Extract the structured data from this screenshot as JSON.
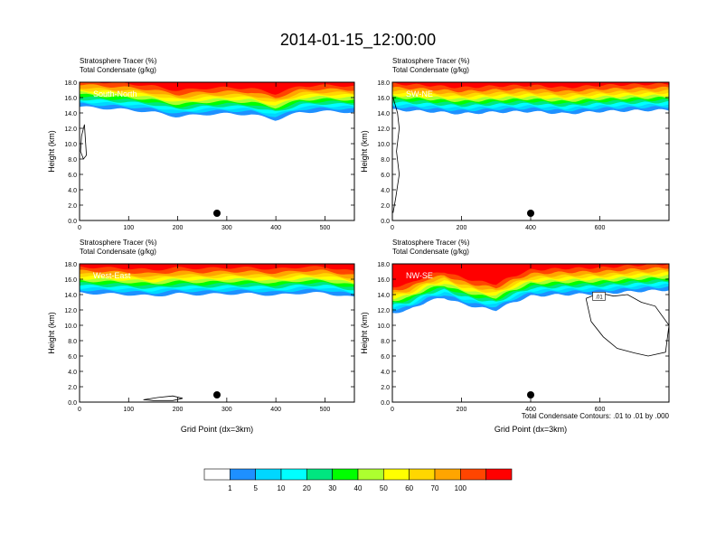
{
  "figure": {
    "title": "2014-01-15_12:00:00",
    "footnote": "Total Condensate Contours: .01 to .01 by .000"
  },
  "chart_data": [
    {
      "type": "heatmap",
      "panel_label": "South-North",
      "subtitle1": "Stratosphere Tracer   (%)",
      "subtitle2": "Total Condensate   (g/kg)",
      "ylabel": "Height (km)",
      "xlabel": "",
      "xlim": [
        0,
        560
      ],
      "ylim": [
        0,
        18
      ],
      "xticks": [
        "0",
        "100",
        "200",
        "300",
        "400",
        "500"
      ],
      "yticks": [
        "0.0",
        "2.0",
        "4.0",
        "6.0",
        "8.0",
        "10.0",
        "12.0",
        "14.0",
        "16.0",
        "18.0"
      ],
      "marker_x": 280,
      "tracer_base_km": [
        [
          0,
          15.0
        ],
        [
          50,
          14.8
        ],
        [
          100,
          14.6
        ],
        [
          150,
          14.3
        ],
        [
          200,
          13.7
        ],
        [
          250,
          14.0
        ],
        [
          300,
          14.1
        ],
        [
          350,
          14.0
        ],
        [
          400,
          13.3
        ],
        [
          450,
          14.3
        ],
        [
          500,
          14.4
        ],
        [
          560,
          14.3
        ]
      ],
      "condensate_contour": [
        [
          10,
          12.5
        ],
        [
          4,
          11
        ],
        [
          2,
          9
        ],
        [
          8,
          8
        ],
        [
          14,
          8.5
        ],
        [
          12,
          10.5
        ],
        [
          10,
          12.5
        ]
      ]
    },
    {
      "type": "heatmap",
      "panel_label": "SW-NE",
      "subtitle1": "Stratosphere Tracer   (%)",
      "subtitle2": "Total Condensate   (g/kg)",
      "ylabel": "Height (km)",
      "xlabel": "",
      "xlim": [
        0,
        800
      ],
      "ylim": [
        0,
        18
      ],
      "xticks": [
        "0",
        "200",
        "400",
        "600"
      ],
      "yticks": [
        "0.0",
        "2.0",
        "4.0",
        "6.0",
        "8.0",
        "10.0",
        "12.0",
        "14.0",
        "16.0",
        "18.0"
      ],
      "marker_x": 400,
      "tracer_base_km": [
        [
          0,
          14.6
        ],
        [
          100,
          14.4
        ],
        [
          200,
          14.1
        ],
        [
          300,
          14.3
        ],
        [
          400,
          14.4
        ],
        [
          500,
          14.1
        ],
        [
          600,
          14.4
        ],
        [
          700,
          14.5
        ],
        [
          800,
          14.6
        ]
      ],
      "condensate_contour": [
        [
          2,
          16
        ],
        [
          15,
          14
        ],
        [
          20,
          12
        ],
        [
          12,
          9
        ],
        [
          20,
          6
        ],
        [
          10,
          3
        ],
        [
          2,
          1
        ]
      ]
    },
    {
      "type": "heatmap",
      "panel_label": "West-East",
      "subtitle1": "Stratosphere Tracer   (%)",
      "subtitle2": "Total Condensate   (g/kg)",
      "ylabel": "Height (km)",
      "xlabel": "Grid Point (dx=3km)",
      "xlim": [
        0,
        560
      ],
      "ylim": [
        0,
        18
      ],
      "xticks": [
        "0",
        "100",
        "200",
        "300",
        "400",
        "500"
      ],
      "yticks": [
        "0.0",
        "2.0",
        "4.0",
        "6.0",
        "8.0",
        "10.0",
        "12.0",
        "14.0",
        "16.0",
        "18.0"
      ],
      "marker_x": 280,
      "tracer_base_km": [
        [
          0,
          14.4
        ],
        [
          50,
          14.3
        ],
        [
          100,
          14.2
        ],
        [
          150,
          14.0
        ],
        [
          200,
          14.3
        ],
        [
          250,
          14.2
        ],
        [
          300,
          14.3
        ],
        [
          350,
          14.3
        ],
        [
          400,
          14.1
        ],
        [
          450,
          14.4
        ],
        [
          500,
          14.4
        ],
        [
          560,
          13.8
        ]
      ],
      "condensate_contour": [
        [
          130,
          0.3
        ],
        [
          160,
          0.6
        ],
        [
          190,
          0.8
        ],
        [
          210,
          0.5
        ],
        [
          190,
          0.2
        ],
        [
          150,
          0.2
        ],
        [
          130,
          0.3
        ]
      ]
    },
    {
      "type": "heatmap",
      "panel_label": "NW-SE",
      "subtitle1": "Stratosphere Tracer   (%)",
      "subtitle2": "Total Condensate   (g/kg)",
      "ylabel": "Height (km)",
      "xlabel": "Grid Point (dx=3km)",
      "xlim": [
        0,
        800
      ],
      "ylim": [
        0,
        18
      ],
      "xticks": [
        "0",
        "200",
        "400",
        "600"
      ],
      "yticks": [
        "0.0",
        "2.0",
        "4.0",
        "6.0",
        "8.0",
        "10.0",
        "12.0",
        "14.0",
        "16.0",
        "18.0"
      ],
      "marker_x": 400,
      "contour_label": ".01",
      "tracer_base_km": [
        [
          0,
          11.8
        ],
        [
          50,
          12.2
        ],
        [
          100,
          13.3
        ],
        [
          150,
          13.8
        ],
        [
          200,
          13.0
        ],
        [
          250,
          12.5
        ],
        [
          300,
          12.2
        ],
        [
          350,
          13.2
        ],
        [
          400,
          14.0
        ],
        [
          450,
          14.1
        ],
        [
          500,
          14.2
        ],
        [
          600,
          14.3
        ],
        [
          700,
          14.6
        ],
        [
          800,
          14.8
        ]
      ],
      "condensate_contour": [
        [
          560,
          13.5
        ],
        [
          600,
          14.2
        ],
        [
          640,
          13.8
        ],
        [
          680,
          14.0
        ],
        [
          720,
          13.0
        ],
        [
          760,
          12.5
        ],
        [
          800,
          10.0
        ],
        [
          790,
          6.5
        ],
        [
          740,
          6.0
        ],
        [
          700,
          6.4
        ],
        [
          650,
          7.0
        ],
        [
          610,
          8.5
        ],
        [
          575,
          10.5
        ],
        [
          560,
          13.5
        ]
      ]
    }
  ],
  "colorbar": {
    "labels": [
      "1",
      "5",
      "10",
      "20",
      "30",
      "40",
      "50",
      "60",
      "70",
      "100"
    ],
    "colors": [
      "#ffffff",
      "#1e90ff",
      "#00d7ff",
      "#00ffff",
      "#00e680",
      "#00ff00",
      "#adff2f",
      "#ffff00",
      "#ffd700",
      "#ffa500",
      "#ff4500",
      "#ff0000"
    ]
  }
}
